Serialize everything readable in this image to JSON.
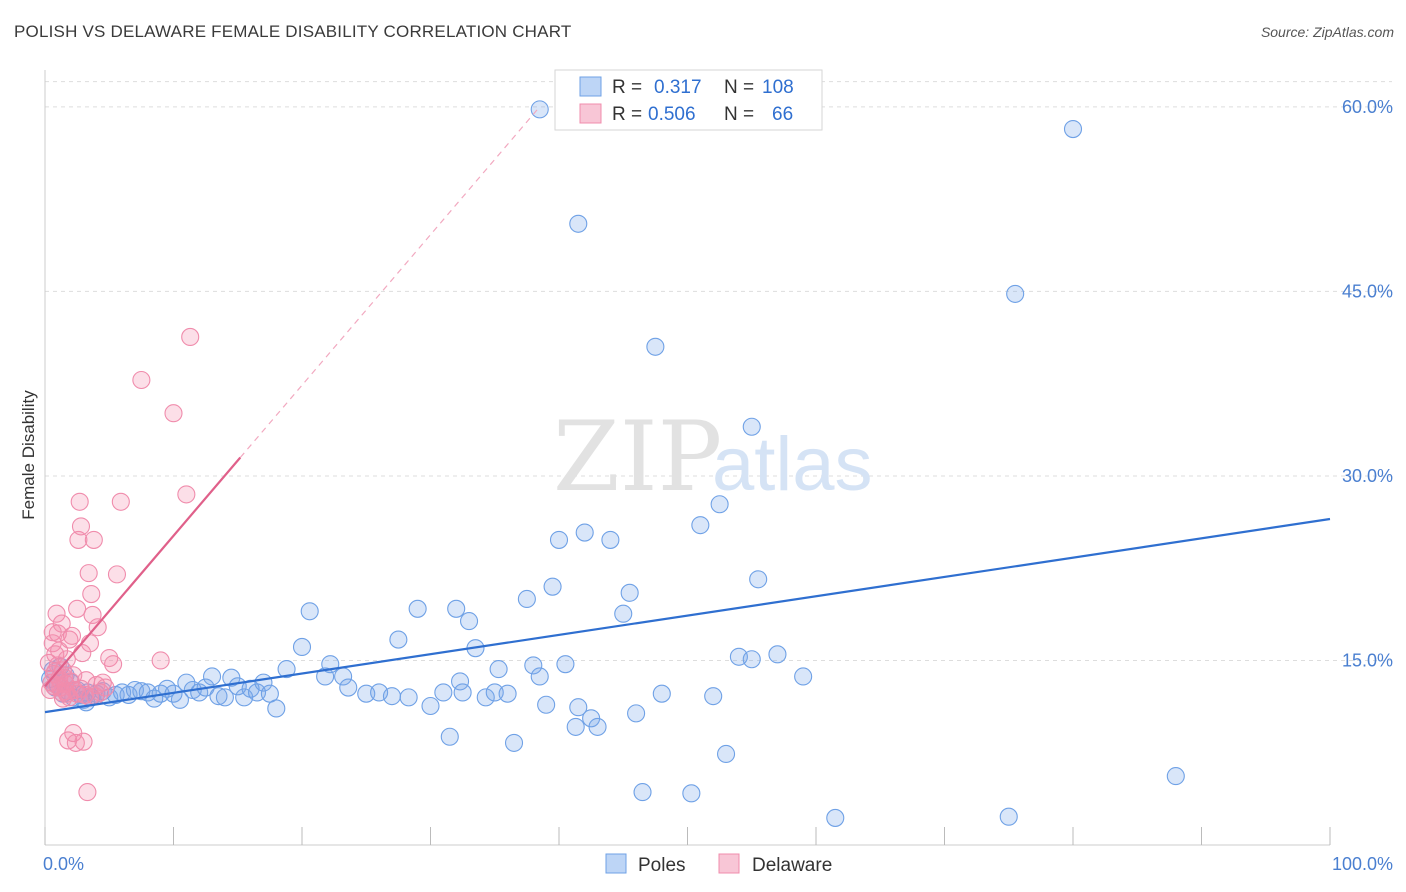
{
  "header": {
    "title": "POLISH VS DELAWARE FEMALE DISABILITY CORRELATION CHART",
    "source": "Source: ZipAtlas.com"
  },
  "watermark": {
    "part1": "ZIP",
    "part2": "atlas"
  },
  "colors": {
    "poles": "#6fa1e6",
    "poles_line": "#2f6fd0",
    "delaware": "#f08cac",
    "delaware_line": "#e0608a",
    "tick_text": "#4a7fd0",
    "grid": "#dddddd"
  },
  "stats": {
    "poles": {
      "r_label": "R =",
      "r": "0.317",
      "n_label": "N =",
      "n": "108"
    },
    "delaware": {
      "r_label": "R =",
      "r": "0.506",
      "n_label": "N =",
      "n": "66"
    }
  },
  "chart_data": {
    "type": "scatter",
    "ylabel": "Female Disability",
    "xlim": [
      0,
      100
    ],
    "ylim": [
      0,
      63
    ],
    "x_tick_labels": [
      {
        "value": 0,
        "label": "0.0%"
      },
      {
        "value": 100,
        "label": "100.0%"
      }
    ],
    "y_tick_labels": [
      {
        "value": 15,
        "label": "15.0%"
      },
      {
        "value": 30,
        "label": "30.0%"
      },
      {
        "value": 45,
        "label": "45.0%"
      },
      {
        "value": 60,
        "label": "60.0%"
      }
    ],
    "grid": true,
    "legend_position": "bottom-center",
    "series": [
      {
        "name": "Poles",
        "color": "#6fa1e6",
        "trendline": {
          "x": [
            0,
            100
          ],
          "y": [
            10.8,
            26.5
          ]
        },
        "points": [
          [
            0.4,
            13.5
          ],
          [
            0.6,
            14.2
          ],
          [
            0.8,
            12.8
          ],
          [
            1.0,
            13.0
          ],
          [
            1.2,
            14.5
          ],
          [
            1.4,
            12.3
          ],
          [
            1.6,
            13.8
          ],
          [
            1.8,
            12.5
          ],
          [
            2.0,
            13.2
          ],
          [
            2.2,
            12.0
          ],
          [
            2.5,
            12.6
          ],
          [
            2.8,
            12.2
          ],
          [
            3.0,
            11.8
          ],
          [
            3.3,
            12.4
          ],
          [
            3.6,
            12.0
          ],
          [
            4.0,
            12.3
          ],
          [
            4.5,
            12.5
          ],
          [
            5.0,
            12.0
          ],
          [
            5.5,
            12.2
          ],
          [
            6.0,
            12.4
          ],
          [
            6.5,
            12.2
          ],
          [
            7.0,
            12.6
          ],
          [
            7.5,
            12.5
          ],
          [
            8.0,
            12.4
          ],
          [
            8.5,
            11.9
          ],
          [
            9.0,
            12.3
          ],
          [
            9.5,
            12.7
          ],
          [
            10.0,
            12.3
          ],
          [
            10.5,
            11.8
          ],
          [
            11.0,
            13.2
          ],
          [
            11.5,
            12.6
          ],
          [
            12.0,
            12.4
          ],
          [
            12.5,
            12.8
          ],
          [
            13.0,
            13.7
          ],
          [
            13.5,
            12.1
          ],
          [
            14.0,
            12.0
          ],
          [
            14.5,
            13.6
          ],
          [
            15.0,
            12.9
          ],
          [
            15.5,
            12.0
          ],
          [
            16.0,
            12.7
          ],
          [
            16.5,
            12.4
          ],
          [
            17.0,
            13.2
          ],
          [
            17.5,
            12.3
          ],
          [
            18.0,
            11.1
          ],
          [
            18.8,
            14.3
          ],
          [
            20.0,
            16.1
          ],
          [
            20.6,
            19.0
          ],
          [
            21.8,
            13.7
          ],
          [
            22.2,
            14.7
          ],
          [
            23.2,
            13.7
          ],
          [
            23.6,
            12.8
          ],
          [
            25.0,
            12.3
          ],
          [
            26.0,
            12.4
          ],
          [
            27.0,
            12.1
          ],
          [
            27.5,
            16.7
          ],
          [
            28.3,
            12.0
          ],
          [
            29.0,
            19.2
          ],
          [
            30.0,
            11.3
          ],
          [
            31.0,
            12.4
          ],
          [
            31.5,
            8.8
          ],
          [
            32.0,
            19.2
          ],
          [
            32.3,
            13.3
          ],
          [
            32.5,
            12.4
          ],
          [
            33.0,
            18.2
          ],
          [
            33.5,
            16.0
          ],
          [
            34.3,
            12.0
          ],
          [
            35.0,
            12.4
          ],
          [
            35.3,
            14.3
          ],
          [
            36.0,
            12.3
          ],
          [
            36.5,
            8.3
          ],
          [
            37.5,
            20.0
          ],
          [
            38.0,
            14.6
          ],
          [
            38.5,
            13.7
          ],
          [
            39.0,
            11.4
          ],
          [
            39.5,
            21.0
          ],
          [
            40.5,
            14.7
          ],
          [
            41.3,
            9.6
          ],
          [
            41.5,
            11.2
          ],
          [
            42.5,
            10.3
          ],
          [
            43.0,
            9.6
          ],
          [
            40.0,
            24.8
          ],
          [
            42.0,
            25.4
          ],
          [
            44.0,
            24.8
          ],
          [
            45.0,
            18.8
          ],
          [
            45.5,
            20.5
          ],
          [
            46.0,
            10.7
          ],
          [
            46.5,
            4.3
          ],
          [
            47.5,
            40.5
          ],
          [
            48.0,
            12.3
          ],
          [
            50.3,
            4.2
          ],
          [
            51.0,
            26.0
          ],
          [
            52.0,
            12.1
          ],
          [
            52.5,
            27.7
          ],
          [
            53.0,
            7.4
          ],
          [
            54.0,
            15.3
          ],
          [
            55.0,
            15.1
          ],
          [
            55.5,
            21.6
          ],
          [
            57.0,
            15.5
          ],
          [
            55.0,
            34.0
          ],
          [
            41.5,
            50.5
          ],
          [
            38.5,
            59.8
          ],
          [
            59.0,
            13.7
          ],
          [
            61.5,
            2.2
          ],
          [
            75.0,
            2.3
          ],
          [
            75.5,
            44.8
          ],
          [
            80.0,
            58.2
          ],
          [
            88.0,
            5.6
          ],
          [
            3.2,
            11.6
          ]
        ]
      },
      {
        "name": "Delaware",
        "color": "#f08cac",
        "trendline": {
          "x": [
            0,
            15.2
          ],
          "y": [
            12.9,
            31.5
          ]
        },
        "points": [
          [
            0.3,
            14.8
          ],
          [
            0.5,
            13.2
          ],
          [
            0.6,
            16.4
          ],
          [
            0.7,
            12.9
          ],
          [
            0.8,
            15.5
          ],
          [
            0.9,
            18.8
          ],
          [
            1.0,
            17.2
          ],
          [
            1.1,
            13.5
          ],
          [
            1.2,
            12.8
          ],
          [
            1.3,
            18.0
          ],
          [
            1.4,
            14.2
          ],
          [
            1.5,
            13.6
          ],
          [
            1.6,
            12.5
          ],
          [
            1.7,
            15.1
          ],
          [
            1.8,
            8.5
          ],
          [
            1.9,
            16.7
          ],
          [
            2.0,
            13.3
          ],
          [
            2.1,
            17.0
          ],
          [
            2.2,
            9.1
          ],
          [
            2.3,
            12.6
          ],
          [
            2.4,
            8.3
          ],
          [
            2.5,
            19.2
          ],
          [
            2.6,
            24.8
          ],
          [
            2.7,
            27.9
          ],
          [
            2.8,
            25.9
          ],
          [
            2.9,
            15.6
          ],
          [
            3.0,
            8.4
          ],
          [
            3.1,
            12.2
          ],
          [
            3.2,
            13.4
          ],
          [
            3.3,
            4.3
          ],
          [
            3.4,
            22.1
          ],
          [
            3.5,
            16.4
          ],
          [
            3.6,
            20.4
          ],
          [
            3.7,
            18.7
          ],
          [
            3.8,
            24.8
          ],
          [
            3.9,
            12.1
          ],
          [
            4.0,
            13.0
          ],
          [
            4.1,
            17.7
          ],
          [
            4.3,
            12.4
          ],
          [
            4.5,
            13.2
          ],
          [
            4.7,
            12.8
          ],
          [
            5.0,
            15.2
          ],
          [
            5.3,
            14.7
          ],
          [
            5.6,
            22.0
          ],
          [
            5.9,
            27.9
          ],
          [
            7.5,
            37.8
          ],
          [
            9.0,
            15.0
          ],
          [
            10.0,
            35.1
          ],
          [
            11.0,
            28.5
          ],
          [
            11.3,
            41.3
          ],
          [
            0.4,
            12.6
          ],
          [
            0.7,
            13.9
          ],
          [
            1.0,
            14.6
          ],
          [
            1.3,
            12.4
          ],
          [
            1.6,
            13.1
          ],
          [
            1.9,
            12.0
          ],
          [
            2.2,
            13.8
          ],
          [
            2.5,
            12.3
          ],
          [
            0.9,
            13.0
          ],
          [
            1.4,
            11.9
          ],
          [
            1.1,
            15.8
          ],
          [
            0.6,
            17.3
          ],
          [
            2.8,
            12.7
          ],
          [
            3.5,
            12.0
          ],
          [
            0.8,
            14.1
          ],
          [
            1.7,
            12.3
          ]
        ]
      }
    ]
  }
}
